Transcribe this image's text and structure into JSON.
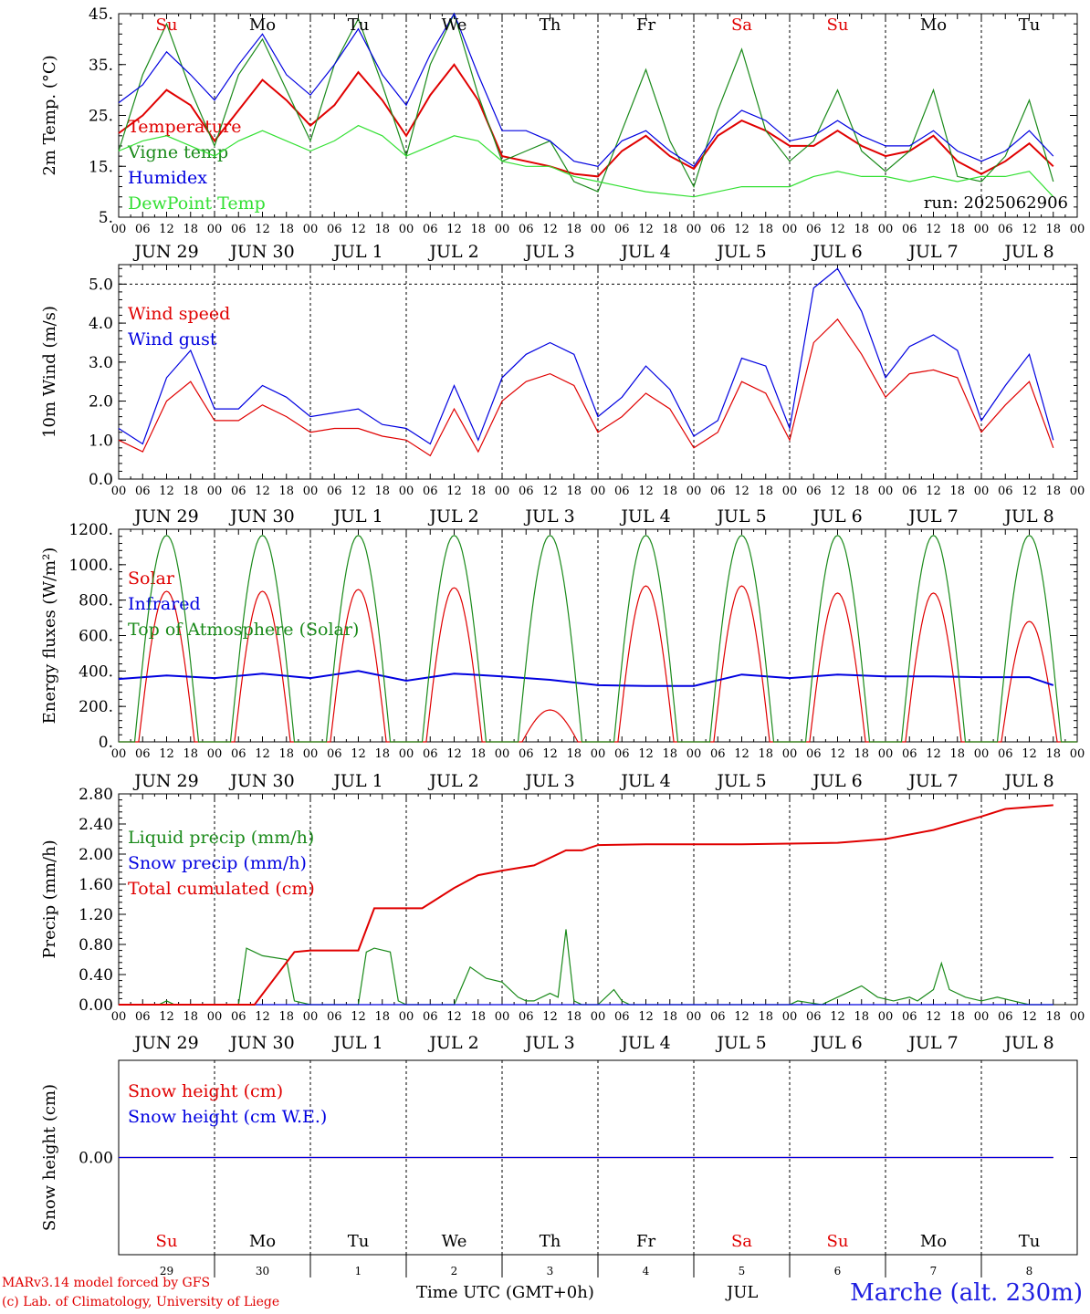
{
  "footer": {
    "model_line": "MARv3.14 model forced by GFS",
    "credit_line": "(c) Lab. of Climatology, University of Liege",
    "time_label": "Time UTC (GMT+0h)",
    "month_label": "JUL",
    "location": "Marche (alt. 230m)"
  },
  "colors": {
    "red": "#e00000",
    "blue": "#0000e0",
    "green": "#1a8a1a",
    "lightgreen": "#33e033",
    "black": "#000000"
  },
  "days": {
    "weekday": [
      "Su",
      "Mo",
      "Tu",
      "We",
      "Th",
      "Fr",
      "Sa",
      "Su",
      "Mo",
      "Tu"
    ],
    "weekday_color": [
      "red",
      "black",
      "black",
      "black",
      "black",
      "black",
      "red",
      "red",
      "black",
      "black"
    ],
    "date_labels": [
      "JUN 29",
      "JUN 30",
      "JUL  1",
      "JUL  2",
      "JUL  3",
      "JUL  4",
      "JUL  5",
      "JUL  6",
      "JUL  7",
      "JUL  8"
    ],
    "hour_ticks": [
      "00",
      "06",
      "12",
      "18"
    ],
    "day_numbers": [
      "29",
      "30",
      "1",
      "2",
      "3",
      "4",
      "5",
      "6",
      "7",
      "8"
    ]
  },
  "chart_data": [
    {
      "type": "line",
      "id": "temp",
      "ylabel": "2m Temp. (°C)",
      "ylim": [
        5,
        45
      ],
      "yticks": [
        "5.",
        "15.",
        "25.",
        "35.",
        "45."
      ],
      "x_unit": "hours since 2025-06-29 00 UTC",
      "run": "run: 2025062906",
      "show_weekdays": true,
      "series": [
        {
          "name": "Temperature",
          "color": "red",
          "x": [
            0,
            6,
            12,
            18,
            24,
            30,
            36,
            42,
            48,
            54,
            60,
            66,
            72,
            78,
            84,
            90,
            96,
            102,
            108,
            114,
            120,
            126,
            132,
            138,
            144,
            150,
            156,
            162,
            168,
            174,
            180,
            186,
            192,
            198,
            204,
            210,
            216,
            222,
            228,
            234
          ],
          "values": [
            21.5,
            25,
            30,
            27,
            20,
            26,
            32,
            28,
            23,
            27,
            33.5,
            28,
            21,
            29,
            35,
            28,
            17,
            16,
            15,
            13.5,
            13,
            18,
            21,
            17,
            14.5,
            21,
            24,
            22,
            19,
            19,
            22,
            19,
            17,
            18,
            21,
            16,
            13.5,
            16,
            19.5,
            15
          ]
        },
        {
          "name": "Vigne temp",
          "color": "green",
          "x": [
            0,
            6,
            12,
            18,
            24,
            30,
            36,
            42,
            48,
            54,
            60,
            66,
            72,
            78,
            84,
            90,
            96,
            102,
            108,
            114,
            120,
            126,
            132,
            138,
            144,
            150,
            156,
            162,
            168,
            174,
            180,
            186,
            192,
            198,
            204,
            210,
            216,
            222,
            228,
            234
          ],
          "values": [
            18,
            33,
            43,
            30,
            19,
            33,
            40,
            30,
            20,
            35,
            44,
            31,
            17,
            35,
            45,
            29,
            16,
            18,
            20,
            12,
            10,
            22,
            34,
            20,
            11,
            26,
            38,
            22,
            16,
            20,
            30,
            18,
            14,
            18,
            30,
            13,
            12,
            17,
            28,
            12
          ]
        },
        {
          "name": "Humidex",
          "color": "blue",
          "x": [
            0,
            6,
            12,
            18,
            24,
            30,
            36,
            42,
            48,
            54,
            60,
            66,
            72,
            78,
            84,
            90,
            96,
            102,
            108,
            114,
            120,
            126,
            132,
            138,
            144,
            150,
            156,
            162,
            168,
            174,
            180,
            186,
            192,
            198,
            204,
            210,
            216,
            222,
            228,
            234
          ],
          "values": [
            27.5,
            31,
            37.5,
            33,
            28,
            35,
            41,
            33,
            29,
            35,
            42,
            33,
            27,
            37,
            45,
            33,
            22,
            22,
            20,
            16,
            15,
            20,
            22,
            18,
            15,
            22,
            26,
            24,
            20,
            21,
            24,
            21,
            19,
            19,
            22,
            18,
            16,
            18,
            22,
            17
          ]
        },
        {
          "name": "DewPoint Temp",
          "color": "lightgreen",
          "x": [
            0,
            6,
            12,
            18,
            24,
            30,
            36,
            42,
            48,
            54,
            60,
            66,
            72,
            78,
            84,
            90,
            96,
            102,
            108,
            114,
            120,
            126,
            132,
            138,
            144,
            150,
            156,
            162,
            168,
            174,
            180,
            186,
            192,
            198,
            204,
            210,
            216,
            222,
            228,
            234
          ],
          "values": [
            18,
            20,
            21,
            19,
            17,
            20,
            22,
            20,
            18,
            20,
            23,
            21,
            17,
            19,
            21,
            20,
            16,
            15,
            15,
            13,
            12,
            11,
            10,
            9.5,
            9,
            10,
            11,
            11,
            11,
            13,
            14,
            13,
            13,
            12,
            13,
            12,
            13,
            13,
            14,
            9
          ]
        }
      ]
    },
    {
      "type": "line",
      "id": "wind",
      "ylabel": "10m Wind (m/s)",
      "ylim": [
        0,
        5.5
      ],
      "yticks": [
        "0.0",
        "1.0",
        "2.0",
        "3.0",
        "4.0",
        "5.0"
      ],
      "dashed_y": 5.0,
      "series": [
        {
          "name": "Wind speed",
          "color": "red",
          "x": [
            0,
            6,
            12,
            18,
            24,
            30,
            36,
            42,
            48,
            54,
            60,
            66,
            72,
            78,
            84,
            90,
            96,
            102,
            108,
            114,
            120,
            126,
            132,
            138,
            144,
            150,
            156,
            162,
            168,
            174,
            180,
            186,
            192,
            198,
            204,
            210,
            216,
            222,
            228,
            234
          ],
          "values": [
            1.0,
            0.7,
            2.0,
            2.5,
            1.5,
            1.5,
            1.9,
            1.6,
            1.2,
            1.3,
            1.3,
            1.1,
            1.0,
            0.6,
            1.8,
            0.7,
            2.0,
            2.5,
            2.7,
            2.4,
            1.2,
            1.6,
            2.2,
            1.8,
            0.8,
            1.2,
            2.5,
            2.2,
            1.0,
            3.5,
            4.1,
            3.2,
            2.1,
            2.7,
            2.8,
            2.6,
            1.2,
            1.9,
            2.5,
            0.8
          ]
        },
        {
          "name": "Wind gust",
          "color": "blue",
          "x": [
            0,
            6,
            12,
            18,
            24,
            30,
            36,
            42,
            48,
            54,
            60,
            66,
            72,
            78,
            84,
            90,
            96,
            102,
            108,
            114,
            120,
            126,
            132,
            138,
            144,
            150,
            156,
            162,
            168,
            174,
            180,
            186,
            192,
            198,
            204,
            210,
            216,
            222,
            228,
            234
          ],
          "values": [
            1.3,
            0.9,
            2.6,
            3.3,
            1.8,
            1.8,
            2.4,
            2.1,
            1.6,
            1.7,
            1.8,
            1.4,
            1.3,
            0.9,
            2.4,
            1.0,
            2.6,
            3.2,
            3.5,
            3.2,
            1.6,
            2.1,
            2.9,
            2.3,
            1.1,
            1.5,
            3.1,
            2.9,
            1.3,
            4.9,
            5.4,
            4.3,
            2.6,
            3.4,
            3.7,
            3.3,
            1.5,
            2.4,
            3.2,
            1.0
          ]
        }
      ]
    },
    {
      "type": "line",
      "id": "energy",
      "ylabel": "Energy fluxes (W/m²)",
      "ylim": [
        0,
        1200
      ],
      "yticks": [
        "0.",
        "200.",
        "400.",
        "600.",
        "800.",
        "1000.",
        "1200."
      ],
      "series": [
        {
          "name": "Solar",
          "color": "red",
          "day_peaks": [
            850,
            850,
            860,
            870,
            180,
            880,
            880,
            840,
            840,
            680
          ]
        },
        {
          "name": "Infrared",
          "color": "blue",
          "x": [
            0,
            12,
            24,
            36,
            48,
            60,
            72,
            84,
            96,
            108,
            120,
            132,
            144,
            156,
            168,
            180,
            192,
            204,
            216,
            228,
            234
          ],
          "values": [
            355,
            375,
            360,
            385,
            360,
            400,
            345,
            385,
            370,
            350,
            320,
            315,
            315,
            380,
            360,
            380,
            370,
            370,
            365,
            365,
            320
          ]
        },
        {
          "name": "Top of Atmosphere (Solar)",
          "color": "green",
          "day_peak": 1165
        }
      ]
    },
    {
      "type": "line",
      "id": "precip",
      "ylabel": "Precip (mm/h)",
      "ylim": [
        0,
        2.8
      ],
      "yticks": [
        "0.00",
        "0.40",
        "0.80",
        "1.20",
        "1.60",
        "2.00",
        "2.40",
        "2.80"
      ],
      "series": [
        {
          "name": "Liquid precip (mm/h)",
          "color": "green",
          "x": [
            0,
            10,
            12,
            14,
            24,
            30,
            32,
            34,
            36,
            42,
            44,
            48,
            60,
            62,
            64,
            68,
            70,
            72,
            84,
            88,
            92,
            96,
            100,
            102,
            104,
            108,
            110,
            112,
            114,
            116,
            120,
            124,
            126,
            128,
            168,
            170,
            176,
            180,
            186,
            190,
            194,
            198,
            200,
            204,
            206,
            208,
            212,
            216,
            220,
            224,
            228,
            234
          ],
          "values": [
            0,
            0,
            0.05,
            0,
            0,
            0,
            0.75,
            0.7,
            0.65,
            0.6,
            0.05,
            0,
            0,
            0.7,
            0.75,
            0.7,
            0.05,
            0,
            0,
            0.5,
            0.35,
            0.3,
            0.1,
            0.05,
            0.05,
            0.15,
            0.1,
            1.0,
            0.05,
            0,
            0,
            0.2,
            0.05,
            0,
            0,
            0.05,
            0,
            0.1,
            0.25,
            0.1,
            0.05,
            0.1,
            0.05,
            0.2,
            0.55,
            0.2,
            0.1,
            0.05,
            0.1,
            0.05,
            0,
            0
          ]
        },
        {
          "name": "Snow precip (mm/h)",
          "color": "blue",
          "x": [
            0,
            234
          ],
          "values": [
            0,
            0
          ]
        },
        {
          "name": "Total cumulated (cm)",
          "color": "red",
          "x": [
            0,
            34,
            44,
            48,
            52,
            60,
            64,
            72,
            76,
            84,
            90,
            96,
            104,
            112,
            116,
            120,
            132,
            144,
            156,
            168,
            180,
            192,
            204,
            216,
            222,
            234
          ],
          "values": [
            0,
            0,
            0.7,
            0.72,
            0.72,
            0.72,
            1.28,
            1.28,
            1.28,
            1.55,
            1.72,
            1.78,
            1.85,
            2.05,
            2.05,
            2.12,
            2.13,
            2.13,
            2.13,
            2.14,
            2.15,
            2.2,
            2.32,
            2.5,
            2.6,
            2.65
          ]
        }
      ]
    },
    {
      "type": "line",
      "id": "snow",
      "ylabel": "Snow height (cm)",
      "ylim": [
        -1,
        1
      ],
      "yticks": [
        "0.00"
      ],
      "series": [
        {
          "name": "Snow height (cm)",
          "color": "red",
          "x": [
            0,
            234
          ],
          "values": [
            0,
            0
          ]
        },
        {
          "name": "Snow height (cm W.E.)",
          "color": "blue",
          "x": [
            0,
            234
          ],
          "values": [
            0,
            0
          ]
        }
      ]
    }
  ]
}
